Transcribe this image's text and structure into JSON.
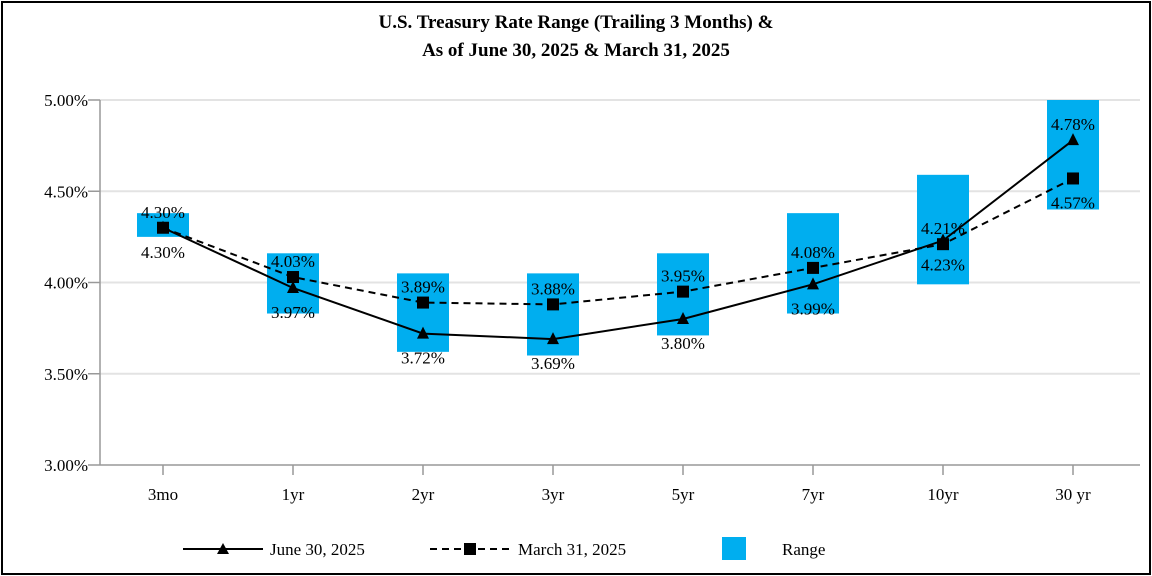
{
  "chart_data": {
    "type": "line",
    "title_line1": "U.S. Treasury Rate Range (Trailing 3 Months) &",
    "title_line2": "As of June 30, 2025 & March 31, 2025",
    "categories": [
      "3mo",
      "1yr",
      "2yr",
      "3yr",
      "5yr",
      "7yr",
      "10yr",
      "30 yr"
    ],
    "ylim": [
      3.0,
      5.0
    ],
    "yticks": [
      "3.00%",
      "3.50%",
      "4.00%",
      "4.50%",
      "5.00%"
    ],
    "ytick_values": [
      3.0,
      3.5,
      4.0,
      4.5,
      5.0
    ],
    "grid": true,
    "range": {
      "name": "Range",
      "color": "#00AEEF",
      "low": [
        4.25,
        3.83,
        3.62,
        3.6,
        3.71,
        3.83,
        3.99,
        4.4
      ],
      "high": [
        4.38,
        4.16,
        4.05,
        4.05,
        4.16,
        4.38,
        4.59,
        5.0
      ]
    },
    "series": [
      {
        "name": "June 30, 2025",
        "marker": "triangle",
        "line": "solid",
        "values": [
          4.3,
          3.97,
          3.72,
          3.69,
          3.8,
          3.99,
          4.23,
          4.78
        ],
        "labels": [
          "4.30%",
          "3.97%",
          "3.72%",
          "3.69%",
          "3.80%",
          "3.99%",
          "4.23%",
          "4.78%"
        ],
        "label_side": [
          "below",
          "below",
          "below",
          "below",
          "below",
          "below",
          "below",
          "above"
        ]
      },
      {
        "name": "March 31, 2025",
        "marker": "square",
        "line": "dashed",
        "values": [
          4.3,
          4.03,
          3.89,
          3.88,
          3.95,
          4.08,
          4.21,
          4.57
        ],
        "labels": [
          "4.30%",
          "4.03%",
          "3.89%",
          "3.88%",
          "3.95%",
          "4.08%",
          "4.21%",
          "4.57%"
        ],
        "label_side": [
          "above",
          "above",
          "above",
          "above",
          "above",
          "above",
          "above",
          "below"
        ]
      }
    ],
    "legend_position": "bottom"
  }
}
